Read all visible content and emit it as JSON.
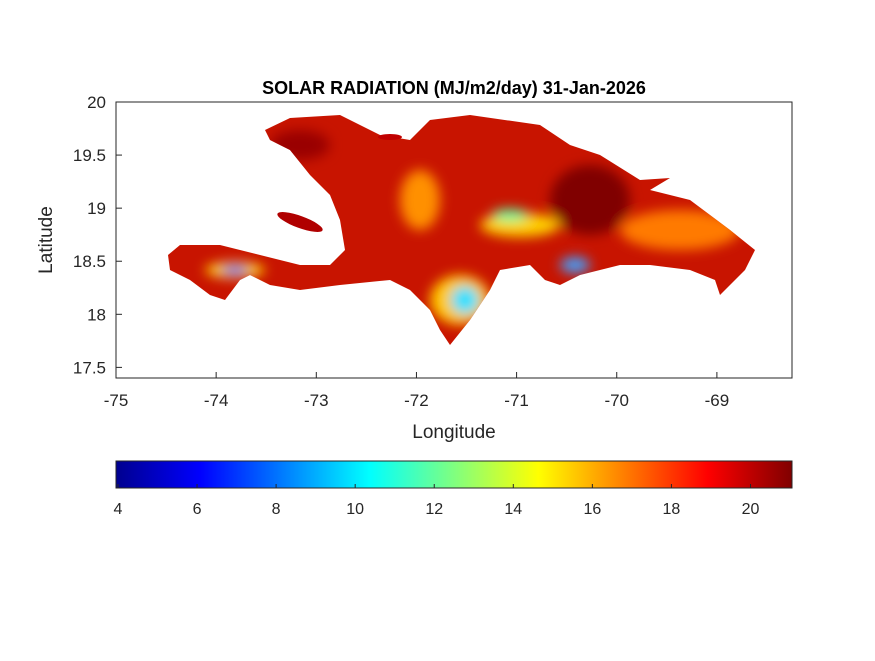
{
  "chart_data": {
    "type": "map",
    "title": "SOLAR RADIATION (MJ/m2/day) 31-Jan-2026",
    "x_label": "Longitude",
    "y_label": "Latitude",
    "xlim": [
      -75,
      -68.25
    ],
    "ylim": [
      17.4,
      20
    ],
    "xticks": [
      -75,
      -74,
      -73,
      -72,
      -71,
      -70,
      -69
    ],
    "yticks": [
      17.5,
      18,
      18.5,
      19,
      19.5,
      20
    ],
    "colorbar": {
      "colormap": "jet",
      "clim": [
        3.95,
        21.05
      ],
      "ticks": [
        4,
        6,
        8,
        10,
        12,
        14,
        16,
        18,
        20
      ]
    }
  }
}
